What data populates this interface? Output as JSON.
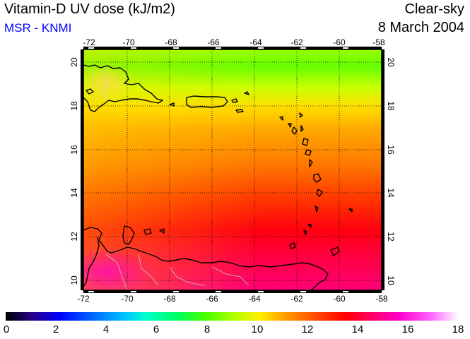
{
  "title": "Vitamin-D UV dose (kJ/m2)",
  "subtitle": "MSR - KNMI",
  "sky_condition": "Clear-sky",
  "date": "8 March 2004",
  "map": {
    "lon_ticks": [
      "-72",
      "-70",
      "-68",
      "-66",
      "-64",
      "-62",
      "-60",
      "-58"
    ],
    "lat_ticks": [
      "10",
      "12",
      "14",
      "16",
      "18",
      "20"
    ],
    "grid": "dotted",
    "coastline_color": "#000000",
    "border_color": "#c8c8c8"
  },
  "colorbar": {
    "ticks": [
      "0",
      "2",
      "4",
      "6",
      "8",
      "10",
      "12",
      "14",
      "16",
      "18"
    ],
    "min": 0,
    "max": 18
  }
}
